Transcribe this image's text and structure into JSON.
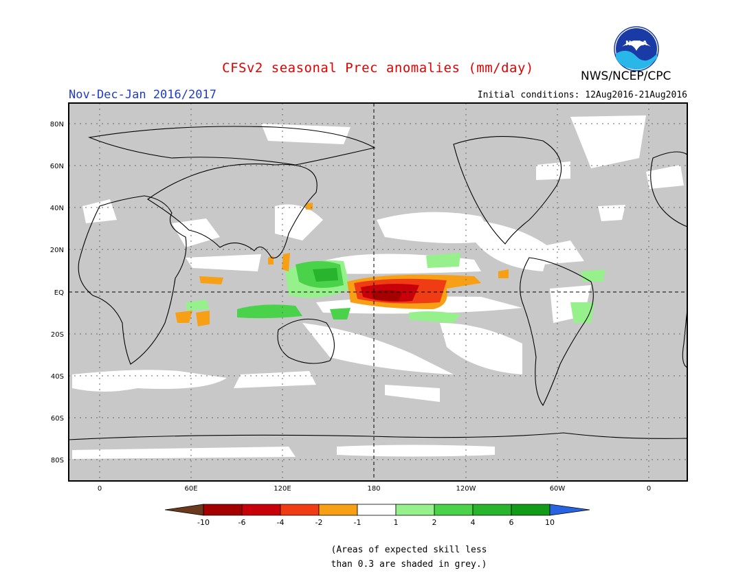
{
  "header": {
    "title": "CFSv2 seasonal Prec anomalies (mm/day)",
    "period": "Nov-Dec-Jan 2016/2017",
    "initial_conditions": "Initial conditions: 12Aug2016-21Aug2016",
    "agency": "NWS/NCEP/CPC",
    "logo_text": "NOAA"
  },
  "map": {
    "lat_labels": [
      "80N",
      "60N",
      "40N",
      "20N",
      "EQ",
      "20S",
      "40S",
      "60S",
      "80S"
    ],
    "lon_labels": [
      "0",
      "60E",
      "120E",
      "180",
      "120W",
      "60W",
      "0"
    ]
  },
  "colorbar": {
    "labels": [
      "-10",
      "-6",
      "-4",
      "-2",
      "-1",
      "1",
      "2",
      "4",
      "6",
      "10"
    ],
    "colors": [
      "#6b3a1e",
      "#a50000",
      "#c8000a",
      "#f03c14",
      "#f7a015",
      "#ffffff",
      "#96f08c",
      "#4bd24b",
      "#28b42d",
      "#119b19",
      "#2864e1"
    ]
  },
  "footnote": "(Areas of expected skill less\nthan 0.3 are shaded in grey.)",
  "colors": {
    "title": "#e00000",
    "period": "#1e3cc8",
    "grey_mask": "#c8c8c8"
  }
}
